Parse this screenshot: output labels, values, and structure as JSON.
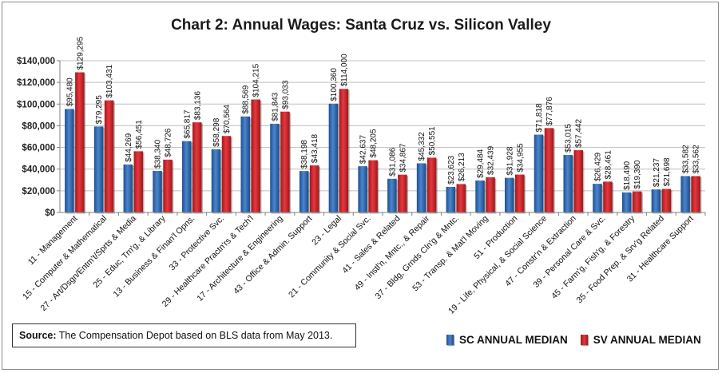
{
  "colors": {
    "sc": "#2f6ab4",
    "sv": "#d42a30",
    "grid": "#bfbfbf",
    "axis": "#808080"
  },
  "source": {
    "label": "Source:",
    "text": " The Compensation Depot based on BLS data from May 2013."
  },
  "chart_data": {
    "type": "bar",
    "title": "Chart 2: Annual Wages: Santa Cruz vs. Silicon Valley",
    "xlabel": "",
    "ylabel": "",
    "ylim": [
      0,
      140000
    ],
    "yticks": [
      0,
      20000,
      40000,
      60000,
      80000,
      100000,
      120000,
      140000
    ],
    "ytick_labels": [
      "$0",
      "$20,000",
      "$40,000",
      "$60,000",
      "$80,000",
      "$100,000",
      "$120,000",
      "$140,000"
    ],
    "grid": "horizontal",
    "legend_position": "bottom-right",
    "categories": [
      "11 - Management",
      "15 - Computer & Mathematical",
      "27 - Art/Dsgn/Entm't/Sprts & Media",
      "25 - Educ, Trn'g, & Library",
      "13 - Business & Finan'l Opns.",
      "33 - Protective Svc.",
      "29 - Healthcare Practn'rs & Tech'l",
      "17 - Architecture & Engineering",
      "43 - Office & Admin. Support",
      "23 - Legal",
      "21 - Community & Social Svc.",
      "41 - Sales & Related",
      "49 - Instl'n, Mntc., & Repair",
      "37 - Bldg, Grnds Cln'g & Mntc.",
      "53 - Transp. & Mat'l Moving",
      "51 - Production",
      "19 - Life, Physical, & Social Science",
      "47 - Constr'n & Extraction",
      "39 - Personal Care & Svc.",
      "45 - Farm'g, Fish'g, & Forestry",
      "35 - Food Prep. & Srv'g Related",
      "31 - Healthcare Support"
    ],
    "series": [
      {
        "name": "SC ANNUAL MEDIAN",
        "values": [
          95480,
          79295,
          44269,
          38340,
          65817,
          58298,
          88569,
          81843,
          38198,
          100360,
          42637,
          31086,
          45332,
          23623,
          29484,
          31928,
          71818,
          53015,
          26429,
          18490,
          21237,
          33582
        ],
        "labels": [
          "$95,480",
          "$79,295",
          "$44,269",
          "$38,340",
          "$65,817",
          "$58,298",
          "$88,569",
          "$81,843",
          "$38,198",
          "$100,360",
          "$42,637",
          "$31,086",
          "$45,332",
          "$23,623",
          "$29,484",
          "$31,928",
          "$71,818",
          "$53,015",
          "$26,429",
          "$18,490",
          "$21,237",
          "$33,582"
        ]
      },
      {
        "name": "SV ANNUAL MEDIAN",
        "values": [
          129295,
          103431,
          56451,
          48726,
          83136,
          70564,
          104215,
          93033,
          43418,
          114000,
          48205,
          34867,
          50551,
          26213,
          32439,
          34955,
          77876,
          57442,
          28461,
          19390,
          21698,
          33562
        ],
        "labels": [
          "$129,295",
          "$103,431",
          "$56,451",
          "$48,726",
          "$83,136",
          "$70,564",
          "$104,215",
          "$93,033",
          "$43,418",
          "$114,000",
          "$48,205",
          "$34,867",
          "$50,551",
          "$26,213",
          "$32,439",
          "$34,955",
          "$77,876",
          "$57,442",
          "$28,461",
          "$19,390",
          "$21,698",
          "$33,562"
        ]
      }
    ]
  }
}
